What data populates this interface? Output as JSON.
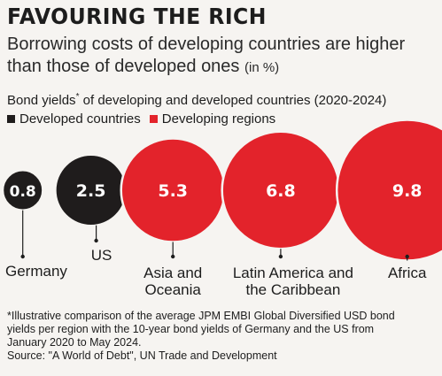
{
  "headline": "FAVOURING THE RICH",
  "subtitle": "Borrowing costs of developing countries are higher than those of developed ones",
  "subtitle_unit": "(in %)",
  "colors": {
    "developed": "#1f1c1c",
    "developing": "#e3232b",
    "background": "#f6f4f1"
  },
  "chart_data": {
    "type": "bubble",
    "title": "Bond yields",
    "title_marker": "*",
    "title_rest": " of developing and developed countries (2020-2024)",
    "legend": [
      {
        "label": "Developed countries",
        "group": "developed"
      },
      {
        "label": "Developing regions",
        "group": "developing"
      }
    ],
    "points": [
      {
        "label": "Germany",
        "value": 0.8,
        "value_label": "0.8",
        "group": "developed"
      },
      {
        "label": "US",
        "value": 2.5,
        "value_label": "2.5",
        "group": "developed"
      },
      {
        "label": "Asia and Oceania",
        "label_lines": [
          "Asia and",
          "Oceania"
        ],
        "value": 5.3,
        "value_label": "5.3",
        "group": "developing"
      },
      {
        "label": "Latin America and the Caribbean",
        "label_lines": [
          "Latin America and",
          "the Caribbean"
        ],
        "value": 6.8,
        "value_label": "6.8",
        "group": "developing"
      },
      {
        "label": "Africa",
        "value": 9.8,
        "value_label": "9.8",
        "group": "developing"
      }
    ]
  },
  "footnote": {
    "lines": [
      "*Illustrative comparison of the average JPM EMBI Global Diversified USD bond",
      "yields per region with the 10-year bond yields of Germany and the US from",
      "January 2020 to May 2024."
    ],
    "source": "Source: \"A World of Debt\", UN Trade and Development"
  }
}
